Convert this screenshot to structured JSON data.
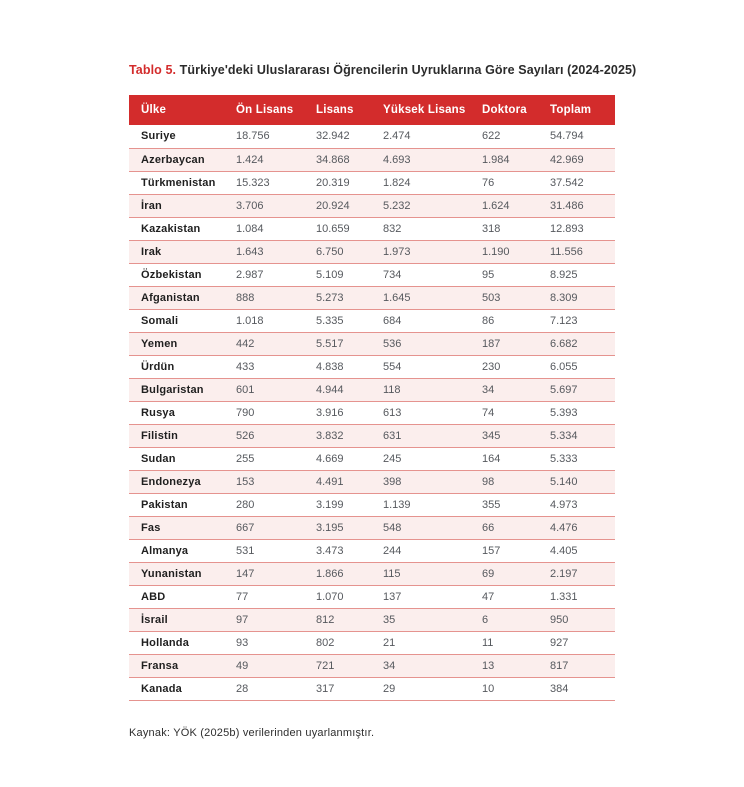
{
  "title": {
    "label": "Tablo 5.",
    "text": " Türkiye'deki Uluslararası Öğrencilerin Uyruklarına Göre Sayıları (2024-2025)"
  },
  "colors": {
    "accent_red": "#d32c2c",
    "row_alt_pink": "#fbeeed",
    "row_border": "#e5938f",
    "header_text": "#ffffff",
    "country_text": "#1f1f1f",
    "number_text": "#56595e"
  },
  "table": {
    "columns": [
      "Ülke",
      "Ön Lisans",
      "Lisans",
      "Yüksek Lisans",
      "Doktora",
      "Toplam"
    ],
    "rows": [
      {
        "country": "Suriye",
        "values": [
          "18.756",
          "32.942",
          "2.474",
          "622",
          "54.794"
        ]
      },
      {
        "country": "Azerbaycan",
        "values": [
          "1.424",
          "34.868",
          "4.693",
          "1.984",
          "42.969"
        ]
      },
      {
        "country": "Türkmenistan",
        "values": [
          "15.323",
          "20.319",
          "1.824",
          "76",
          "37.542"
        ]
      },
      {
        "country": "İran",
        "values": [
          "3.706",
          "20.924",
          "5.232",
          "1.624",
          "31.486"
        ]
      },
      {
        "country": "Kazakistan",
        "values": [
          "1.084",
          "10.659",
          "832",
          "318",
          "12.893"
        ]
      },
      {
        "country": "Irak",
        "values": [
          "1.643",
          "6.750",
          "1.973",
          "1.190",
          "11.556"
        ]
      },
      {
        "country": "Özbekistan",
        "values": [
          "2.987",
          "5.109",
          "734",
          "95",
          "8.925"
        ]
      },
      {
        "country": "Afganistan",
        "values": [
          "888",
          "5.273",
          "1.645",
          "503",
          "8.309"
        ]
      },
      {
        "country": "Somali",
        "values": [
          "1.018",
          "5.335",
          "684",
          "86",
          "7.123"
        ]
      },
      {
        "country": "Yemen",
        "values": [
          "442",
          "5.517",
          "536",
          "187",
          "6.682"
        ]
      },
      {
        "country": "Ürdün",
        "values": [
          "433",
          "4.838",
          "554",
          "230",
          "6.055"
        ]
      },
      {
        "country": "Bulgaristan",
        "values": [
          "601",
          "4.944",
          "118",
          "34",
          "5.697"
        ]
      },
      {
        "country": "Rusya",
        "values": [
          "790",
          "3.916",
          "613",
          "74",
          "5.393"
        ]
      },
      {
        "country": "Filistin",
        "values": [
          "526",
          "3.832",
          "631",
          "345",
          "5.334"
        ]
      },
      {
        "country": "Sudan",
        "values": [
          "255",
          "4.669",
          "245",
          "164",
          "5.333"
        ]
      },
      {
        "country": "Endonezya",
        "values": [
          "153",
          "4.491",
          "398",
          "98",
          "5.140"
        ]
      },
      {
        "country": "Pakistan",
        "values": [
          "280",
          "3.199",
          "1.139",
          "355",
          "4.973"
        ]
      },
      {
        "country": "Fas",
        "values": [
          "667",
          "3.195",
          "548",
          "66",
          "4.476"
        ]
      },
      {
        "country": "Almanya",
        "values": [
          "531",
          "3.473",
          "244",
          "157",
          "4.405"
        ]
      },
      {
        "country": "Yunanistan",
        "values": [
          "147",
          "1.866",
          "115",
          "69",
          "2.197"
        ]
      },
      {
        "country": "ABD",
        "values": [
          "77",
          "1.070",
          "137",
          "47",
          "1.331"
        ]
      },
      {
        "country": "İsrail",
        "values": [
          "97",
          "812",
          "35",
          "6",
          "950"
        ]
      },
      {
        "country": "Hollanda",
        "values": [
          "93",
          "802",
          "21",
          "11",
          "927"
        ]
      },
      {
        "country": "Fransa",
        "values": [
          "49",
          "721",
          "34",
          "13",
          "817"
        ]
      },
      {
        "country": "Kanada",
        "values": [
          "28",
          "317",
          "29",
          "10",
          "384"
        ]
      }
    ]
  },
  "footer": {
    "source": "Kaynak:  YÖK (2025b) verilerinden uyarlanmıştır."
  }
}
